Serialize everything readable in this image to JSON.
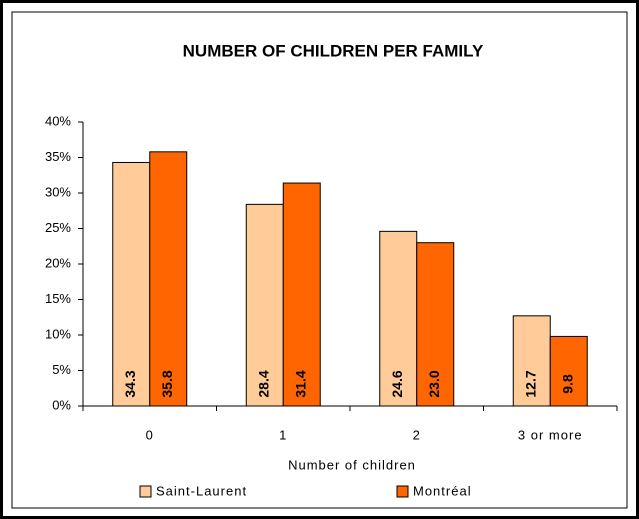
{
  "chart_data": {
    "type": "bar",
    "title": "NUMBER OF CHILDREN PER FAMILY",
    "x_label": "Number of children",
    "categories": [
      "0",
      "1",
      "2",
      "3 or more"
    ],
    "series": [
      {
        "name": "Saint-Laurent",
        "color": "#ffcc99",
        "values": [
          34.3,
          28.4,
          24.6,
          12.7
        ],
        "value_labels": [
          "34.3",
          "28.4",
          "24.6",
          "12.7"
        ]
      },
      {
        "name": "Montréal",
        "color": "#ff6600",
        "values": [
          35.8,
          31.4,
          23.0,
          9.8
        ],
        "value_labels": [
          "35.8",
          "31.4",
          "23.0",
          "9.8"
        ]
      }
    ],
    "ylim": [
      0,
      40
    ],
    "yticks": [
      {
        "value": 0,
        "label": "0%"
      },
      {
        "value": 5,
        "label": "5%"
      },
      {
        "value": 10,
        "label": "10%"
      },
      {
        "value": 15,
        "label": "15%"
      },
      {
        "value": 20,
        "label": "20%"
      },
      {
        "value": 25,
        "label": "25%"
      },
      {
        "value": 30,
        "label": "30%"
      },
      {
        "value": 35,
        "label": "35%"
      },
      {
        "value": 40,
        "label": "40%"
      }
    ],
    "grid": false,
    "legend": "bottom"
  }
}
